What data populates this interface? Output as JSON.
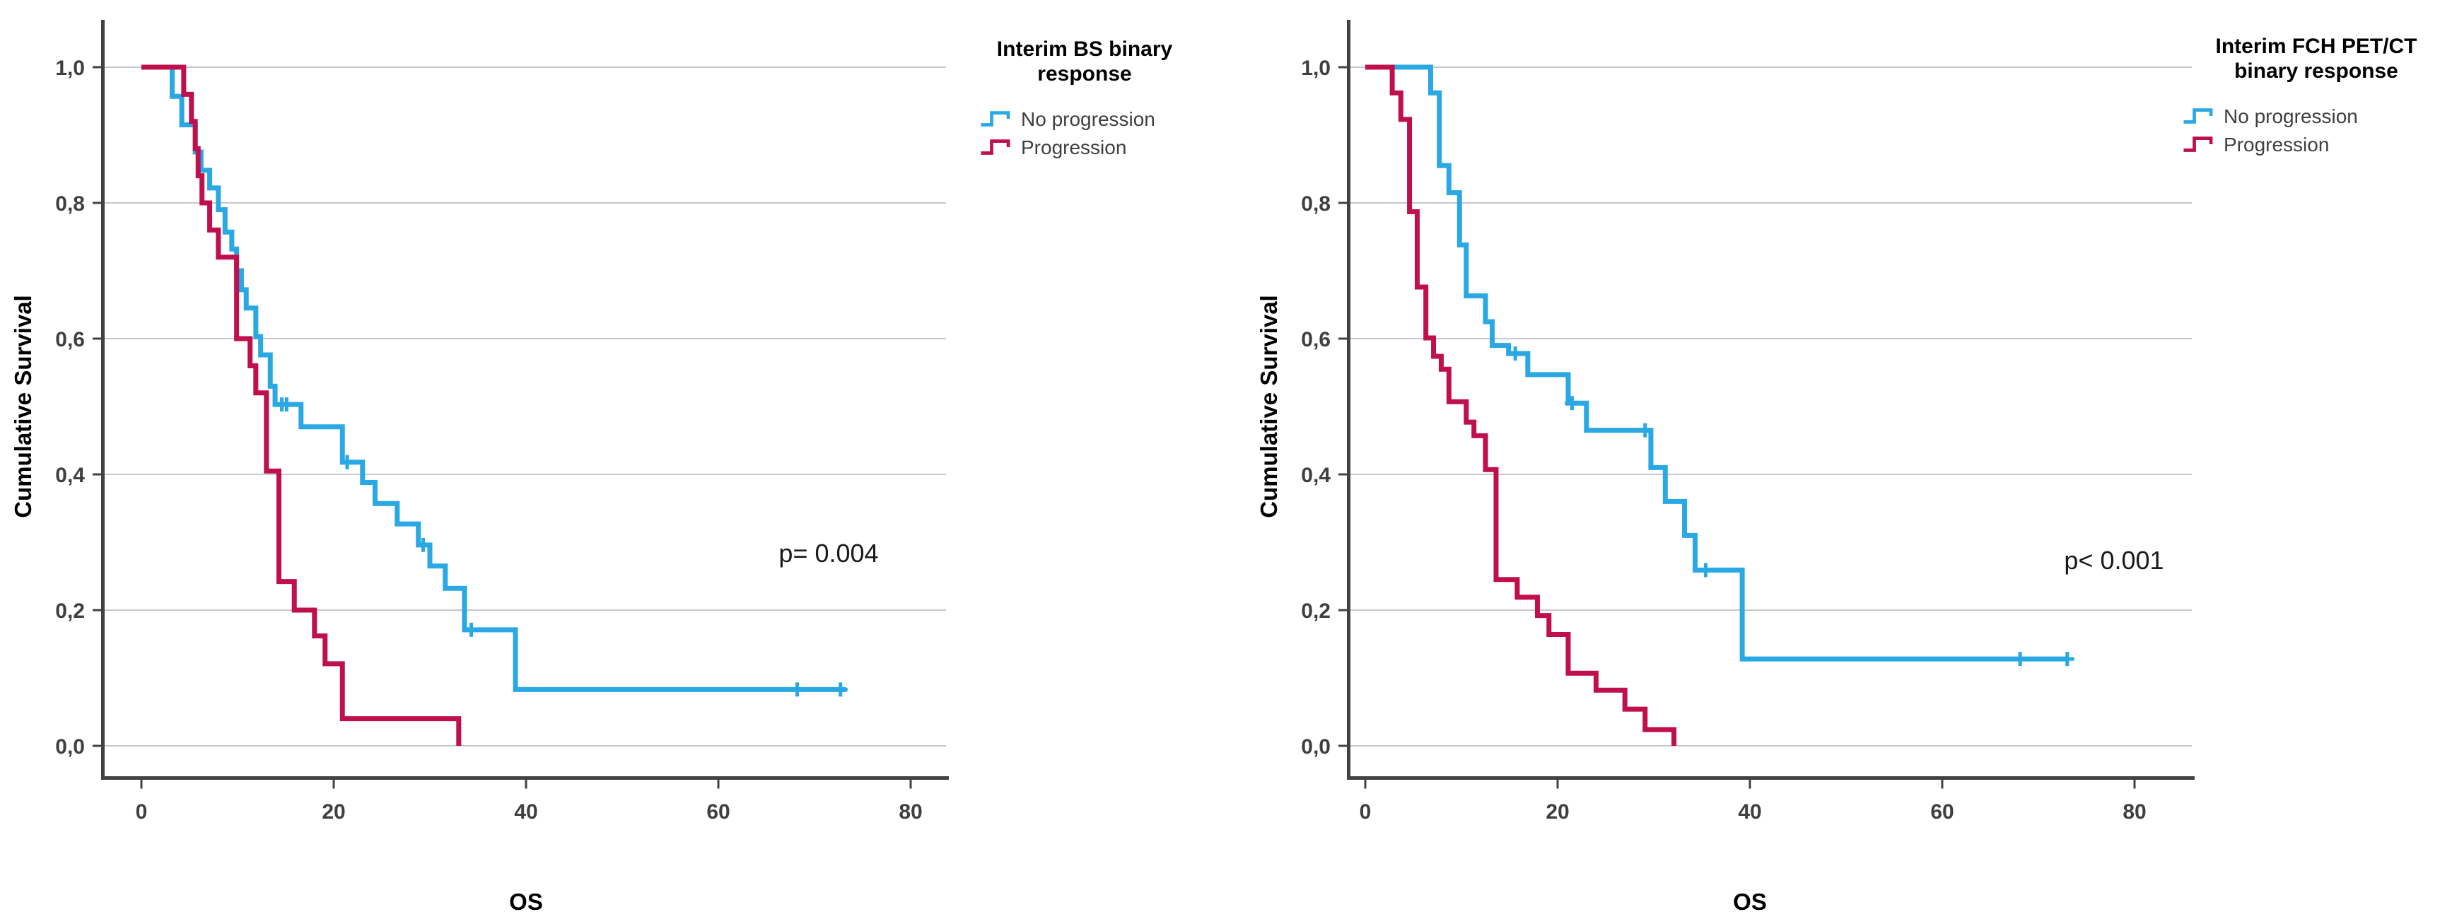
{
  "figure": {
    "background_color": "#ffffff",
    "grid_color": "#c8c8c8",
    "axis_color": "#424242",
    "description_note": "Two Kaplan-Meier cumulative survival step plots"
  },
  "chart_data": [
    {
      "type": "line",
      "subtype": "kaplan-meier-step",
      "title": "Interim BS binary response",
      "xlabel": "OS",
      "ylabel": "Cumulative Survival",
      "p_label": "p= 0.004",
      "xlim": [
        -4.2,
        83.5
      ],
      "ylim": [
        0,
        1.05
      ],
      "grid": true,
      "legend_position": "right-outside-top",
      "x_tick_labels": [
        "0",
        "20",
        "40",
        "60",
        "80"
      ],
      "x_tick_values": [
        0,
        20,
        40,
        60,
        80
      ],
      "y_tick_labels": [
        "1,0",
        "0,8",
        "0,6",
        "0,4",
        "0,2",
        "0,0"
      ],
      "y_tick_values": [
        1.0,
        0.8,
        0.6,
        0.4,
        0.2,
        0.0
      ],
      "series": [
        {
          "id": "no-progression",
          "name": "No progression",
          "color": "#29a8e4",
          "steps": [
            [
              0,
              1
            ],
            [
              3.2,
              0.957
            ],
            [
              4.2,
              0.915
            ],
            [
              5.6,
              0.875
            ],
            [
              6.2,
              0.848
            ],
            [
              7.1,
              0.822
            ],
            [
              8,
              0.79
            ],
            [
              8.7,
              0.757
            ],
            [
              9.4,
              0.732
            ],
            [
              9.9,
              0.7
            ],
            [
              10.4,
              0.672
            ],
            [
              10.9,
              0.645
            ],
            [
              11.9,
              0.603
            ],
            [
              12.4,
              0.576
            ],
            [
              13.4,
              0.53
            ],
            [
              13.9,
              0.503
            ],
            [
              16.6,
              0.47
            ],
            [
              20.9,
              0.418
            ],
            [
              23,
              0.388
            ],
            [
              24.3,
              0.357
            ],
            [
              26.6,
              0.327
            ],
            [
              28.8,
              0.296
            ],
            [
              30,
              0.265
            ],
            [
              31.6,
              0.232
            ],
            [
              33.6,
              0.171
            ],
            [
              38.9,
              0.083
            ]
          ],
          "end_time": 73.3,
          "censors": [
            [
              14.6,
              0.503
            ],
            [
              15.1,
              0.503
            ],
            [
              21.4,
              0.418
            ],
            [
              29.3,
              0.296
            ],
            [
              34.3,
              0.171
            ],
            [
              68.2,
              0.083
            ],
            [
              72.7,
              0.083
            ]
          ]
        },
        {
          "id": "progression",
          "name": "Progression",
          "color": "#bf0f4d",
          "steps": [
            [
              0,
              1
            ],
            [
              4.4,
              0.96
            ],
            [
              5.2,
              0.92
            ],
            [
              5.6,
              0.88
            ],
            [
              5.9,
              0.84
            ],
            [
              6.3,
              0.8
            ],
            [
              7.1,
              0.76
            ],
            [
              8,
              0.72
            ],
            [
              9.9,
              0.6
            ],
            [
              11.3,
              0.56
            ],
            [
              11.9,
              0.52
            ],
            [
              13,
              0.405
            ],
            [
              14.3,
              0.242
            ],
            [
              15.9,
              0.2
            ],
            [
              18,
              0.162
            ],
            [
              19.1,
              0.121
            ],
            [
              20.9,
              0.04
            ],
            [
              33,
              0
            ]
          ],
          "end_time": 33,
          "censors": []
        }
      ]
    },
    {
      "type": "line",
      "subtype": "kaplan-meier-step",
      "title": "Interim FCH PET/CT binary response",
      "xlabel": "OS",
      "ylabel": "Cumulative Survival",
      "p_label": "p< 0.001",
      "xlim": [
        -4.2,
        83.5
      ],
      "ylim": [
        0,
        1.05
      ],
      "grid": true,
      "legend_position": "right-outside-top",
      "x_tick_labels": [
        "0",
        "20",
        "40",
        "60",
        "80"
      ],
      "x_tick_values": [
        0,
        20,
        40,
        60,
        80
      ],
      "y_tick_labels": [
        "1,0",
        "0,8",
        "0,6",
        "0,4",
        "0,2",
        "0,0"
      ],
      "y_tick_values": [
        1.0,
        0.8,
        0.6,
        0.4,
        0.2,
        0.0
      ],
      "series": [
        {
          "id": "no-progression",
          "name": "No progression",
          "color": "#29a8e4",
          "steps": [
            [
              0,
              1
            ],
            [
              6.8,
              0.962
            ],
            [
              7.7,
              0.855
            ],
            [
              8.7,
              0.815
            ],
            [
              9.8,
              0.738
            ],
            [
              10.5,
              0.663
            ],
            [
              12.5,
              0.625
            ],
            [
              13.2,
              0.59
            ],
            [
              14.9,
              0.578
            ],
            [
              16.9,
              0.547
            ],
            [
              21.1,
              0.505
            ],
            [
              23,
              0.465
            ],
            [
              29.7,
              0.41
            ],
            [
              31.2,
              0.36
            ],
            [
              33.2,
              0.31
            ],
            [
              34.3,
              0.259
            ],
            [
              39.2,
              0.128
            ]
          ],
          "end_time": 73.2,
          "censors": [
            [
              15.6,
              0.578
            ],
            [
              21.5,
              0.505
            ],
            [
              29.1,
              0.465
            ],
            [
              35.4,
              0.259
            ],
            [
              68.1,
              0.128
            ],
            [
              73,
              0.128
            ]
          ]
        },
        {
          "id": "progression",
          "name": "Progression",
          "color": "#bf0f4d",
          "steps": [
            [
              0,
              1
            ],
            [
              2.8,
              0.962
            ],
            [
              3.7,
              0.923
            ],
            [
              4.6,
              0.787
            ],
            [
              5.4,
              0.676
            ],
            [
              6.3,
              0.601
            ],
            [
              7.1,
              0.574
            ],
            [
              7.9,
              0.555
            ],
            [
              8.7,
              0.507
            ],
            [
              10.5,
              0.477
            ],
            [
              11.3,
              0.457
            ],
            [
              12.5,
              0.407
            ],
            [
              13.6,
              0.245
            ],
            [
              15.8,
              0.219
            ],
            [
              17.9,
              0.192
            ],
            [
              19.1,
              0.164
            ],
            [
              21.1,
              0.107
            ],
            [
              24,
              0.082
            ],
            [
              27,
              0.054
            ],
            [
              29.1,
              0.024
            ],
            [
              32.1,
              0
            ]
          ],
          "end_time": 32.1,
          "censors": []
        }
      ]
    }
  ]
}
